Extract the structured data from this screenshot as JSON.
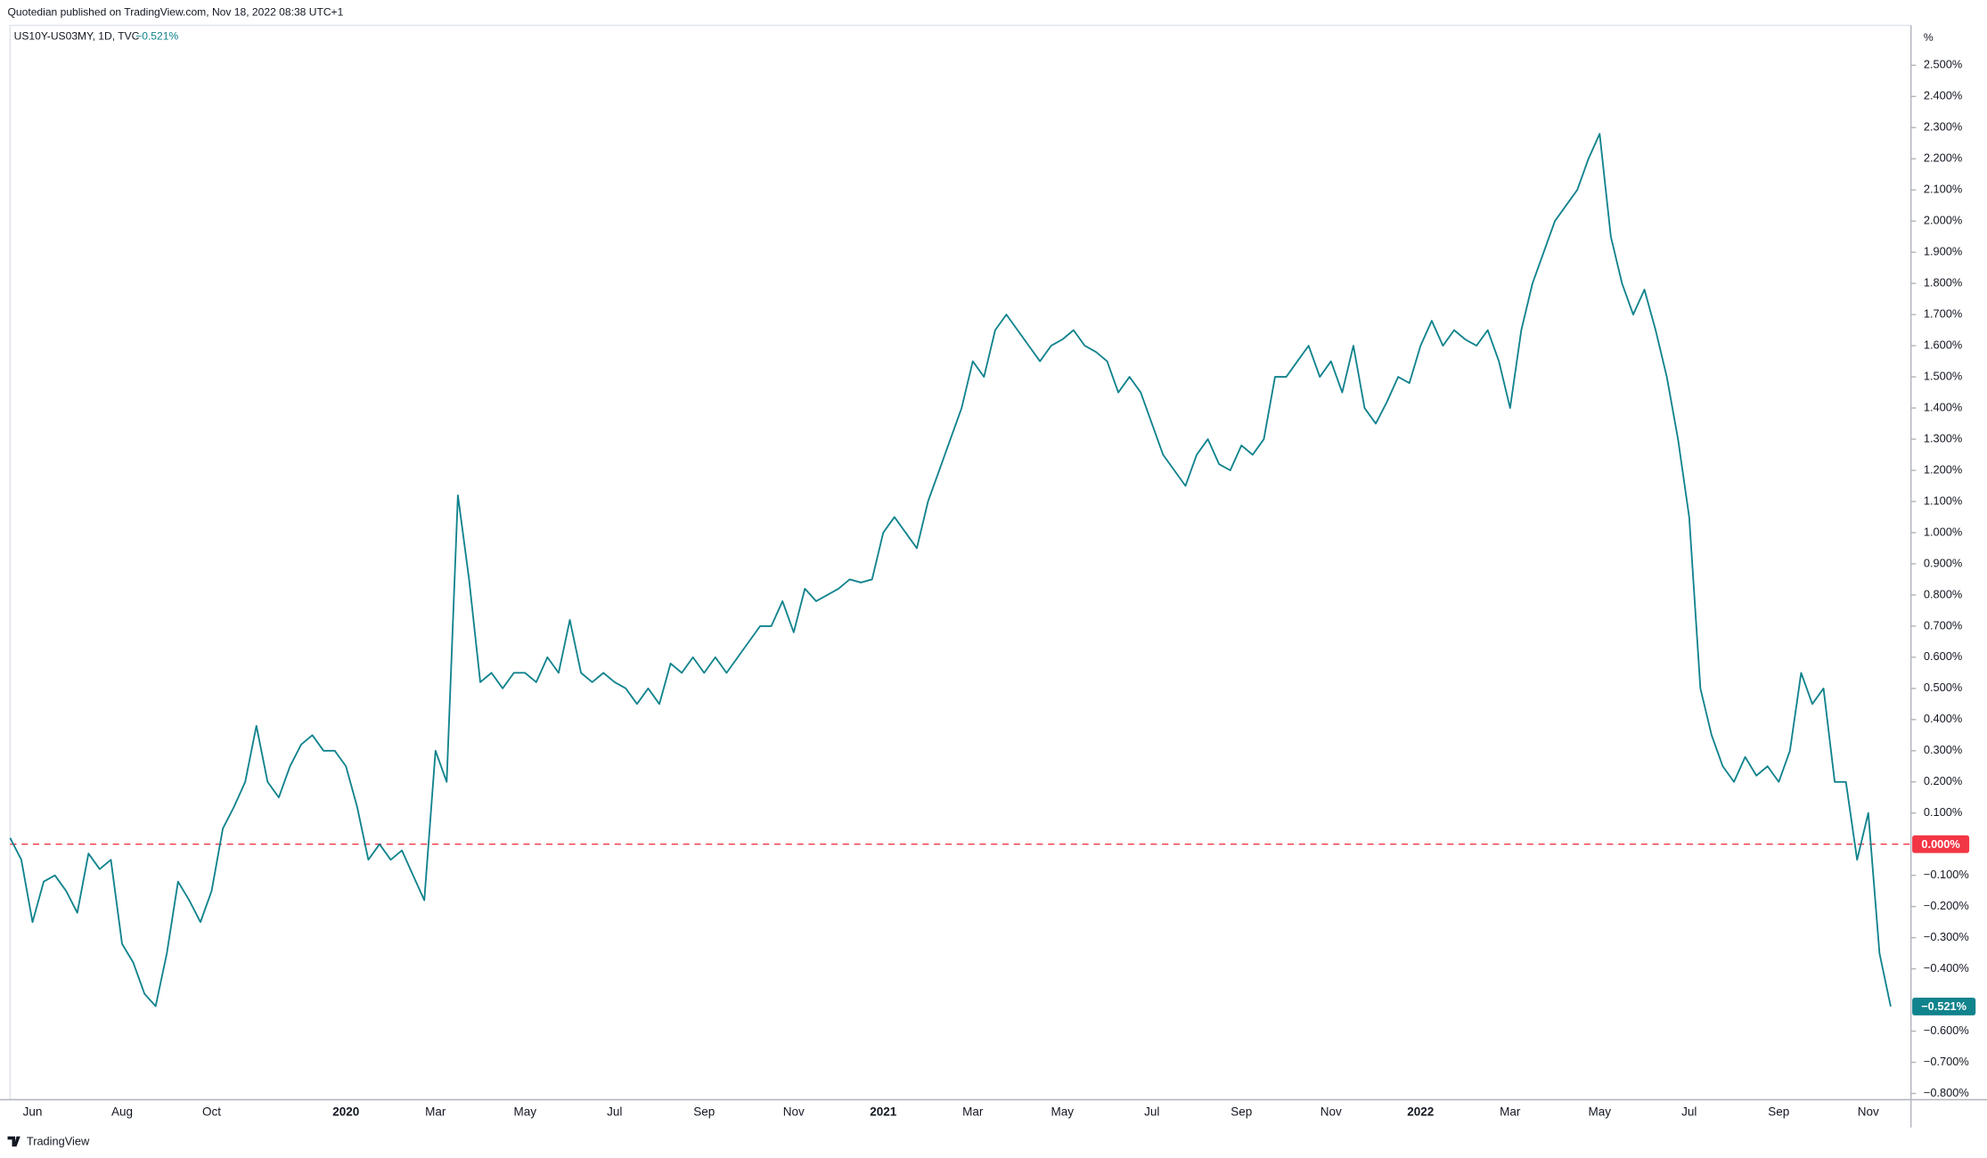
{
  "header": {
    "published": "Quotedian published on TradingView.com, Nov 18, 2022 08:38 UTC+1",
    "symbol": "US10Y-US03MY, 1D, TVC",
    "change": "−0.521%"
  },
  "footer": {
    "brand": "TradingView"
  },
  "chart_data": {
    "type": "line",
    "color": "#10838d",
    "unit_label": "%",
    "categories": [
      null,
      null,
      "Jun",
      null,
      null,
      null,
      null,
      null,
      null,
      null,
      "Aug",
      null,
      null,
      null,
      null,
      null,
      null,
      null,
      "Oct",
      null,
      null,
      null,
      null,
      null,
      null,
      null,
      null,
      null,
      null,
      null,
      "2020",
      null,
      null,
      null,
      null,
      null,
      null,
      null,
      "Mar",
      null,
      null,
      null,
      null,
      null,
      null,
      null,
      "May",
      null,
      null,
      null,
      null,
      null,
      null,
      null,
      "Jul",
      null,
      null,
      null,
      null,
      null,
      null,
      null,
      "Sep",
      null,
      null,
      null,
      null,
      null,
      null,
      null,
      "Nov",
      null,
      null,
      null,
      null,
      null,
      null,
      null,
      "2021",
      null,
      null,
      null,
      null,
      null,
      null,
      null,
      "Mar",
      null,
      null,
      null,
      null,
      null,
      null,
      null,
      "May",
      null,
      null,
      null,
      null,
      null,
      null,
      null,
      "Jul",
      null,
      null,
      null,
      null,
      null,
      null,
      null,
      "Sep",
      null,
      null,
      null,
      null,
      null,
      null,
      null,
      "Nov",
      null,
      null,
      null,
      null,
      null,
      null,
      null,
      "2022",
      null,
      null,
      null,
      null,
      null,
      null,
      null,
      "Mar",
      null,
      null,
      null,
      null,
      null,
      null,
      null,
      "May",
      null,
      null,
      null,
      null,
      null,
      null,
      null,
      "Jul",
      null,
      null,
      null,
      null,
      null,
      null,
      null,
      "Sep",
      null,
      null,
      null,
      null,
      null,
      null,
      null,
      "Nov",
      null,
      null
    ],
    "values": [
      0.02,
      -0.05,
      -0.25,
      -0.12,
      -0.1,
      -0.15,
      -0.22,
      -0.03,
      -0.08,
      -0.05,
      -0.32,
      -0.38,
      -0.48,
      -0.52,
      -0.35,
      -0.12,
      -0.18,
      -0.25,
      -0.15,
      0.05,
      0.12,
      0.2,
      0.38,
      0.2,
      0.15,
      0.25,
      0.32,
      0.35,
      0.3,
      0.3,
      0.25,
      0.12,
      -0.05,
      0.0,
      -0.05,
      -0.02,
      -0.1,
      -0.18,
      0.3,
      0.2,
      1.12,
      0.85,
      0.52,
      0.55,
      0.5,
      0.55,
      0.55,
      0.52,
      0.6,
      0.55,
      0.72,
      0.55,
      0.52,
      0.55,
      0.52,
      0.5,
      0.45,
      0.5,
      0.45,
      0.58,
      0.55,
      0.6,
      0.55,
      0.6,
      0.55,
      0.6,
      0.65,
      0.7,
      0.7,
      0.78,
      0.68,
      0.82,
      0.78,
      0.8,
      0.82,
      0.85,
      0.84,
      0.85,
      1.0,
      1.05,
      1.0,
      0.95,
      1.1,
      1.2,
      1.3,
      1.4,
      1.55,
      1.5,
      1.65,
      1.7,
      1.65,
      1.6,
      1.55,
      1.6,
      1.62,
      1.65,
      1.6,
      1.58,
      1.55,
      1.45,
      1.5,
      1.45,
      1.35,
      1.25,
      1.2,
      1.15,
      1.25,
      1.3,
      1.22,
      1.2,
      1.28,
      1.25,
      1.3,
      1.5,
      1.5,
      1.55,
      1.6,
      1.5,
      1.55,
      1.45,
      1.6,
      1.4,
      1.35,
      1.42,
      1.5,
      1.48,
      1.6,
      1.68,
      1.6,
      1.65,
      1.62,
      1.6,
      1.65,
      1.55,
      1.4,
      1.65,
      1.8,
      1.9,
      2.0,
      2.05,
      2.1,
      2.2,
      2.28,
      1.95,
      1.8,
      1.7,
      1.78,
      1.65,
      1.5,
      1.3,
      1.05,
      0.5,
      0.35,
      0.25,
      0.2,
      0.28,
      0.22,
      0.25,
      0.2,
      0.3,
      0.55,
      0.45,
      0.5,
      0.2,
      0.2,
      -0.05,
      0.1,
      -0.35,
      -0.521
    ],
    "last_value_label": "−0.521%",
    "ylim": [
      -0.82,
      2.62
    ],
    "yticks": [
      {
        "value": 2.5,
        "label": "2.500%"
      },
      {
        "value": 2.4,
        "label": "2.400%"
      },
      {
        "value": 2.3,
        "label": "2.300%"
      },
      {
        "value": 2.2,
        "label": "2.200%"
      },
      {
        "value": 2.1,
        "label": "2.100%"
      },
      {
        "value": 2.0,
        "label": "2.000%"
      },
      {
        "value": 1.9,
        "label": "1.900%"
      },
      {
        "value": 1.8,
        "label": "1.800%"
      },
      {
        "value": 1.7,
        "label": "1.700%"
      },
      {
        "value": 1.6,
        "label": "1.600%"
      },
      {
        "value": 1.5,
        "label": "1.500%"
      },
      {
        "value": 1.4,
        "label": "1.400%"
      },
      {
        "value": 1.3,
        "label": "1.300%"
      },
      {
        "value": 1.2,
        "label": "1.200%"
      },
      {
        "value": 1.1,
        "label": "1.100%"
      },
      {
        "value": 1.0,
        "label": "1.000%"
      },
      {
        "value": 0.9,
        "label": "0.900%"
      },
      {
        "value": 0.8,
        "label": "0.800%"
      },
      {
        "value": 0.7,
        "label": "0.700%"
      },
      {
        "value": 0.6,
        "label": "0.600%"
      },
      {
        "value": 0.5,
        "label": "0.500%"
      },
      {
        "value": 0.4,
        "label": "0.400%"
      },
      {
        "value": 0.3,
        "label": "0.300%"
      },
      {
        "value": 0.2,
        "label": "0.200%"
      },
      {
        "value": 0.1,
        "label": "0.100%"
      },
      {
        "value": -0.1,
        "label": "−0.100%"
      },
      {
        "value": -0.2,
        "label": "−0.200%"
      },
      {
        "value": -0.3,
        "label": "−0.300%"
      },
      {
        "value": -0.4,
        "label": "−0.400%"
      },
      {
        "value": -0.6,
        "label": "−0.600%"
      },
      {
        "value": -0.7,
        "label": "−0.700%"
      },
      {
        "value": -0.8,
        "label": "−0.800%"
      }
    ],
    "zero_line": {
      "value": 0,
      "label": "0.000%",
      "color": "#f23645"
    }
  }
}
